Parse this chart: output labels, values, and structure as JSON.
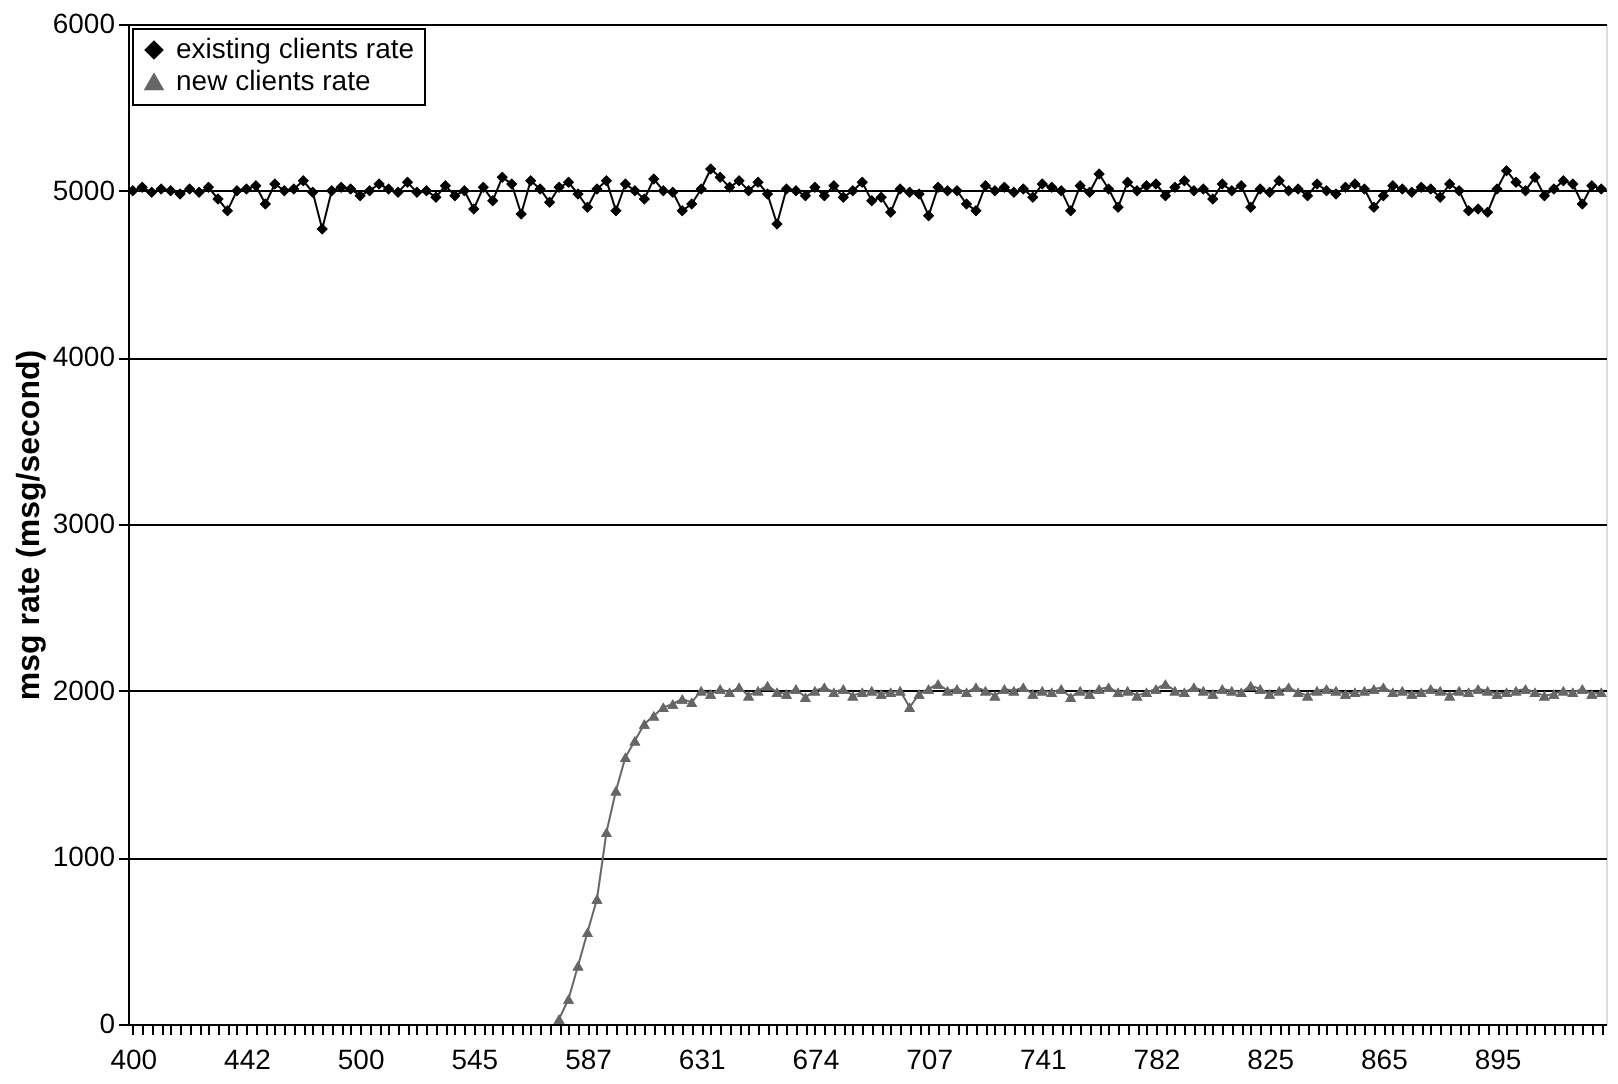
{
  "chart_data": {
    "type": "line",
    "ylabel": "msg rate (msg/second)",
    "categories": [
      "400",
      null,
      null,
      null,
      null,
      null,
      null,
      null,
      null,
      null,
      null,
      null,
      "442",
      null,
      null,
      null,
      null,
      null,
      null,
      null,
      null,
      null,
      null,
      null,
      "500",
      null,
      null,
      null,
      null,
      null,
      null,
      null,
      null,
      null,
      null,
      null,
      "545",
      null,
      null,
      null,
      null,
      null,
      null,
      null,
      null,
      null,
      null,
      null,
      "587",
      null,
      null,
      null,
      null,
      null,
      null,
      null,
      null,
      null,
      null,
      null,
      "631",
      null,
      null,
      null,
      null,
      null,
      null,
      null,
      null,
      null,
      null,
      null,
      "674",
      null,
      null,
      null,
      null,
      null,
      null,
      null,
      null,
      null,
      null,
      null,
      "707",
      null,
      null,
      null,
      null,
      null,
      null,
      null,
      null,
      null,
      null,
      null,
      "741",
      null,
      null,
      null,
      null,
      null,
      null,
      null,
      null,
      null,
      null,
      null,
      "782",
      null,
      null,
      null,
      null,
      null,
      null,
      null,
      null,
      null,
      null,
      null,
      "825",
      null,
      null,
      null,
      null,
      null,
      null,
      null,
      null,
      null,
      null,
      null,
      "865",
      null,
      null,
      null,
      null,
      null,
      null,
      null,
      null,
      null,
      null,
      null,
      "895",
      null,
      null,
      null,
      null,
      null,
      null,
      null,
      null,
      null,
      null,
      null
    ],
    "series": [
      {
        "name": "existing clients rate",
        "color": "#000000",
        "marker": "diamond",
        "values": [
          5000,
          5020,
          4990,
          5010,
          5000,
          4980,
          5010,
          4990,
          5020,
          4950,
          4880,
          5000,
          5010,
          5030,
          4920,
          5040,
          5000,
          5010,
          5060,
          4990,
          4770,
          5000,
          5020,
          5010,
          4970,
          5000,
          5040,
          5010,
          4990,
          5050,
          4990,
          5000,
          4960,
          5030,
          4970,
          5000,
          4890,
          5020,
          4940,
          5080,
          5040,
          4860,
          5060,
          5010,
          4930,
          5020,
          5050,
          4980,
          4900,
          5010,
          5060,
          4880,
          5040,
          5000,
          4950,
          5070,
          5000,
          4990,
          4880,
          4920,
          5010,
          5130,
          5080,
          5020,
          5060,
          5000,
          5050,
          4980,
          4800,
          5010,
          5000,
          4970,
          5020,
          4970,
          5030,
          4960,
          5000,
          5050,
          4940,
          4960,
          4870,
          5010,
          4990,
          4980,
          4850,
          5020,
          5000,
          5000,
          4920,
          4880,
          5030,
          5000,
          5020,
          4990,
          5010,
          4960,
          5040,
          5020,
          5000,
          4880,
          5030,
          4990,
          5100,
          5010,
          4900,
          5050,
          5000,
          5030,
          5040,
          4970,
          5020,
          5060,
          5000,
          5010,
          4950,
          5040,
          5000,
          5030,
          4900,
          5010,
          4990,
          5060,
          5000,
          5010,
          4970,
          5040,
          5000,
          4980,
          5020,
          5040,
          5010,
          4900,
          4970,
          5030,
          5010,
          4990,
          5020,
          5010,
          4960,
          5040,
          5000,
          4880,
          4890,
          4870,
          5010,
          5120,
          5050,
          5000,
          5080,
          4970,
          5010,
          5060,
          5040,
          4920,
          5030,
          5010
        ]
      },
      {
        "name": "new clients rate",
        "color": "#666666",
        "marker": "triangle",
        "values": [
          null,
          null,
          null,
          null,
          null,
          null,
          null,
          null,
          null,
          null,
          null,
          null,
          null,
          null,
          null,
          null,
          null,
          null,
          null,
          null,
          null,
          null,
          null,
          null,
          null,
          null,
          null,
          null,
          null,
          null,
          null,
          null,
          null,
          null,
          null,
          null,
          null,
          null,
          null,
          null,
          null,
          null,
          null,
          null,
          null,
          30,
          150,
          350,
          550,
          750,
          1150,
          1400,
          1600,
          1700,
          1800,
          1850,
          1900,
          1920,
          1950,
          1930,
          2000,
          1980,
          2010,
          1990,
          2020,
          1970,
          2000,
          2030,
          1990,
          1980,
          2010,
          1960,
          2000,
          2020,
          1990,
          2010,
          1970,
          1990,
          2000,
          1980,
          1990,
          2000,
          1900,
          1980,
          2010,
          2040,
          2000,
          2010,
          1990,
          2020,
          2000,
          1970,
          2010,
          2000,
          2020,
          1980,
          2000,
          1990,
          2010,
          1960,
          2000,
          1980,
          2010,
          2020,
          1990,
          2000,
          1970,
          1990,
          2010,
          2040,
          2000,
          1990,
          2020,
          2000,
          1980,
          2010,
          2000,
          1990,
          2030,
          2010,
          1980,
          2000,
          2020,
          1990,
          1970,
          2000,
          2010,
          2000,
          1980,
          1990,
          2000,
          2010,
          2020,
          1990,
          2000,
          1980,
          1990,
          2010,
          2000,
          1970,
          2000,
          1990,
          2010,
          2000,
          1980,
          1990,
          2000,
          2010,
          1990,
          1970,
          1980,
          2000,
          1990,
          2010,
          1980,
          1990
        ]
      }
    ],
    "ylim": [
      0,
      6000
    ],
    "yticks": [
      0,
      1000,
      2000,
      3000,
      4000,
      5000,
      6000
    ],
    "grid": "y",
    "legend": "top left",
    "line_style": "solid"
  }
}
